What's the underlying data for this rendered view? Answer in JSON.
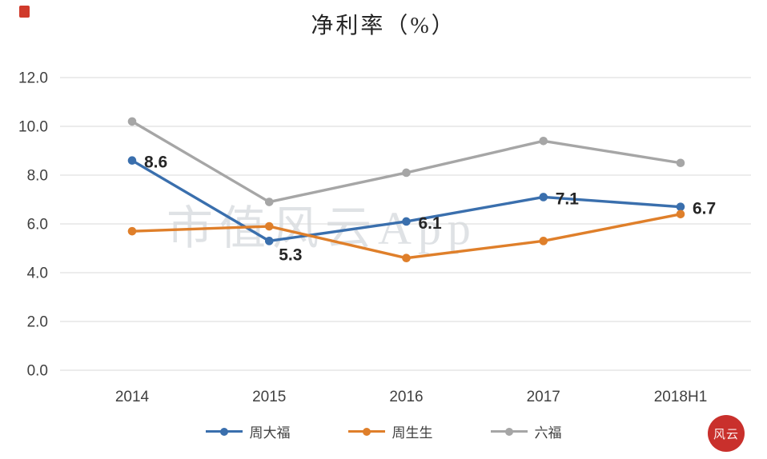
{
  "title": "净利率（%）",
  "watermark": "市值风云App",
  "chart_data": {
    "type": "line",
    "title": "净利率（%）",
    "categories": [
      "2014",
      "2015",
      "2016",
      "2017",
      "2018H1"
    ],
    "series": [
      {
        "name": "周大福",
        "color": "#3a6fad",
        "values": [
          8.6,
          5.3,
          6.1,
          7.1,
          6.7
        ],
        "labels": [
          "8.6",
          "5.3",
          "6.1",
          "7.1",
          "6.7"
        ]
      },
      {
        "name": "周生生",
        "color": "#df7f2a",
        "values": [
          5.7,
          5.9,
          4.6,
          5.3,
          6.4
        ]
      },
      {
        "name": "六福",
        "color": "#a6a6a6",
        "values": [
          10.2,
          6.9,
          8.1,
          9.4,
          8.5
        ]
      }
    ],
    "ylim": [
      0,
      12
    ],
    "ytick_step": 2,
    "ytick_labels": [
      "0.0",
      "2.0",
      "4.0",
      "6.0",
      "8.0",
      "10.0",
      "12.0"
    ],
    "grid": true,
    "legend_position": "bottom",
    "grid_color": "#d9d9d9",
    "axis_text_color": "#404040",
    "data_label_color": "#262626"
  },
  "branding": {
    "seal_text": "风云",
    "seal_color": "#c9302c",
    "corner_mark_color": "#d03a2b"
  }
}
